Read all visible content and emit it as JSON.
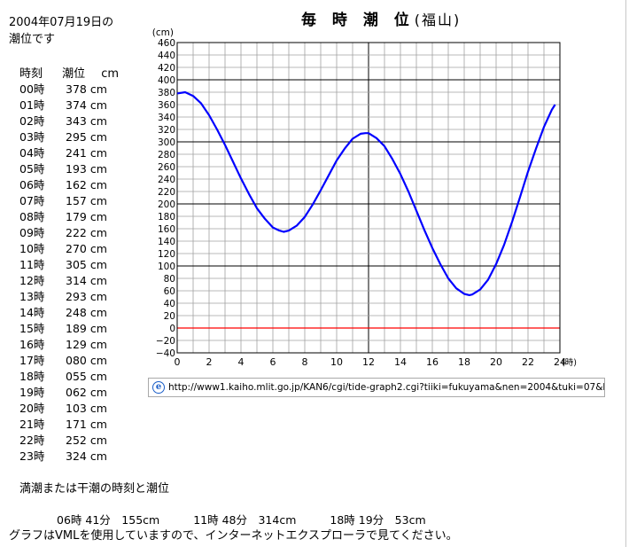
{
  "header": {
    "date_line": "2004年07月19日の",
    "date_line2": "潮位です"
  },
  "table": {
    "col_time": "時刻",
    "col_level": "潮位",
    "col_unit": "cm",
    "rows": [
      {
        "hour": "00時",
        "level": "378 cm"
      },
      {
        "hour": "01時",
        "level": "374 cm"
      },
      {
        "hour": "02時",
        "level": "343 cm"
      },
      {
        "hour": "03時",
        "level": "295 cm"
      },
      {
        "hour": "04時",
        "level": "241 cm"
      },
      {
        "hour": "05時",
        "level": "193 cm"
      },
      {
        "hour": "06時",
        "level": "162 cm"
      },
      {
        "hour": "07時",
        "level": "157 cm"
      },
      {
        "hour": "08時",
        "level": "179 cm"
      },
      {
        "hour": "09時",
        "level": "222 cm"
      },
      {
        "hour": "10時",
        "level": "270 cm"
      },
      {
        "hour": "11時",
        "level": "305 cm"
      },
      {
        "hour": "12時",
        "level": "314 cm"
      },
      {
        "hour": "13時",
        "level": "293 cm"
      },
      {
        "hour": "14時",
        "level": "248 cm"
      },
      {
        "hour": "15時",
        "level": "189 cm"
      },
      {
        "hour": "16時",
        "level": "129 cm"
      },
      {
        "hour": "17時",
        "level": "080 cm"
      },
      {
        "hour": "18時",
        "level": "055 cm"
      },
      {
        "hour": "19時",
        "level": "062 cm"
      },
      {
        "hour": "20時",
        "level": "103 cm"
      },
      {
        "hour": "21時",
        "level": "171 cm"
      },
      {
        "hour": "22時",
        "level": "252 cm"
      },
      {
        "hour": "23時",
        "level": "324 cm"
      }
    ]
  },
  "highlow": {
    "title": "満潮または干潮の時刻と潮位",
    "items": [
      "06時 41分　155cm",
      "11時 48分　314cm",
      "18時 19分　53cm"
    ]
  },
  "note": "グラフはVMLを使用していますので、インターネットエクスプローラで見てください。",
  "url_bar": {
    "icon": "ie-page-icon",
    "text": "http://www1.kaiho.mlit.go.jp/KAN6/cgi/tide-graph2.cgi?tiiki=fukuyama&nen=2004&tuki=07&hi=19"
  },
  "chart_data": {
    "type": "line",
    "title": "毎 時 潮 位",
    "subtitle": "(福山)",
    "ylabel": "(cm)",
    "xlabel": "(時)",
    "xlim": [
      0,
      24
    ],
    "ylim": [
      -40,
      460
    ],
    "x_ticks": [
      0,
      2,
      4,
      6,
      8,
      10,
      12,
      14,
      16,
      18,
      20,
      22,
      24
    ],
    "y_ticks": [
      -40,
      -20,
      0,
      20,
      40,
      60,
      80,
      100,
      120,
      140,
      160,
      180,
      200,
      220,
      240,
      260,
      280,
      300,
      320,
      340,
      360,
      380,
      400,
      420,
      440,
      460
    ],
    "x_tick_labels": [
      "0",
      "2",
      "4",
      "6",
      "8",
      "10",
      "12",
      "14",
      "16",
      "18",
      "20",
      "22",
      "24"
    ],
    "y_tick_labels": [
      "−40",
      "−20",
      "0",
      "20",
      "40",
      "60",
      "80",
      "100",
      "120",
      "140",
      "160",
      "180",
      "200",
      "220",
      "240",
      "260",
      "280",
      "300",
      "320",
      "340",
      "360",
      "380",
      "400",
      "420",
      "440",
      "460"
    ],
    "grid": true,
    "series": [
      {
        "x": [
          0,
          0.5,
          1,
          1.5,
          2,
          2.5,
          3,
          3.5,
          4,
          4.5,
          5,
          5.5,
          6,
          6.41,
          6.68,
          7,
          7.5,
          8,
          8.5,
          9,
          9.5,
          10,
          10.5,
          11,
          11.5,
          11.8,
          12,
          12.5,
          13,
          13.5,
          14,
          14.5,
          15,
          15.5,
          16,
          16.5,
          17,
          17.5,
          18,
          18.32,
          18.5,
          19,
          19.5,
          20,
          20.5,
          21,
          21.5,
          22,
          22.5,
          23,
          23.5,
          23.7
        ],
        "values": [
          378,
          380,
          374,
          362,
          343,
          320,
          295,
          268,
          241,
          216,
          193,
          176,
          162,
          157,
          155,
          157,
          165,
          179,
          199,
          222,
          246,
          270,
          289,
          305,
          313,
          314,
          314,
          306,
          293,
          272,
          248,
          220,
          189,
          158,
          129,
          103,
          80,
          64,
          55,
          53,
          54,
          62,
          78,
          103,
          134,
          171,
          211,
          252,
          289,
          324,
          352,
          360
        ],
        "color": "#0000ff"
      }
    ],
    "zero_line_color": "#ff0000"
  }
}
